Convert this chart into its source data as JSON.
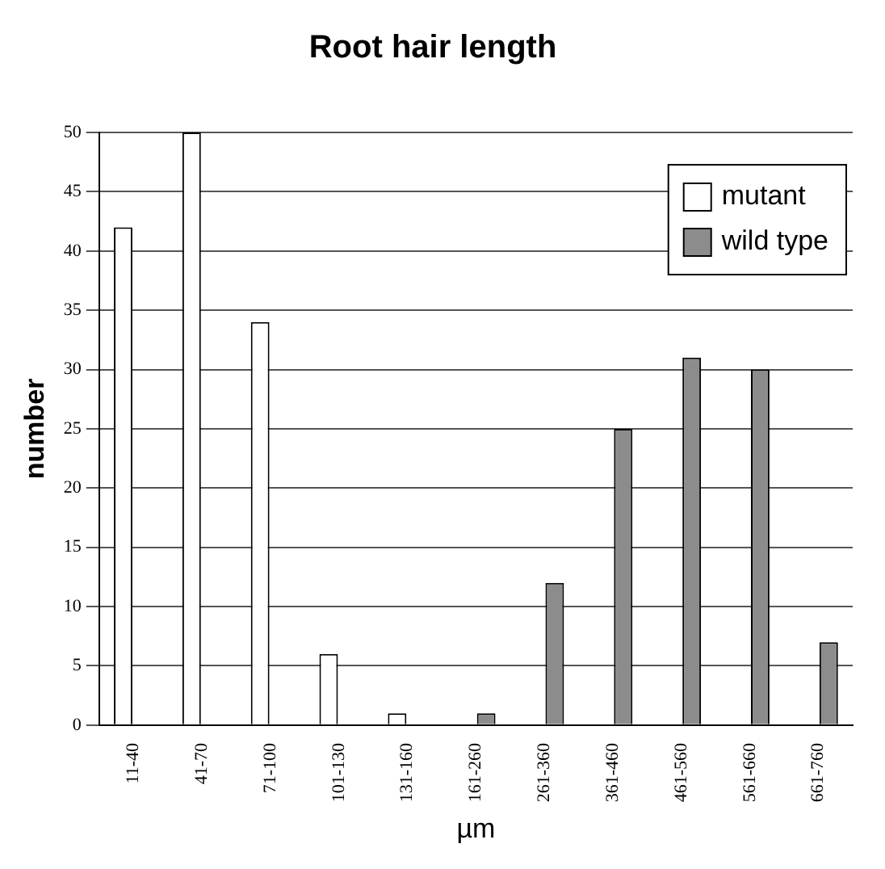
{
  "chart_data": {
    "type": "bar",
    "title": "Root hair length",
    "xlabel": "µm",
    "ylabel": "number",
    "categories": [
      "11-40",
      "41-70",
      "71-100",
      "101-130",
      "131-160",
      "161-260",
      "261-360",
      "361-460",
      "461-560",
      "561-660",
      "661-760"
    ],
    "series": [
      {
        "name": "mutant",
        "color": "#ffffff",
        "values": [
          42,
          50,
          34,
          6,
          1,
          0,
          0,
          0,
          0,
          0,
          0
        ]
      },
      {
        "name": "wild type",
        "color": "#8c8c8c",
        "values": [
          0,
          0,
          0,
          0,
          0,
          1,
          12,
          25,
          31,
          30,
          7
        ]
      }
    ],
    "ylim": [
      0,
      50
    ],
    "yticks": [
      0,
      5,
      10,
      15,
      20,
      25,
      30,
      35,
      40,
      45,
      50
    ],
    "grid": "y",
    "legend": "top right"
  }
}
